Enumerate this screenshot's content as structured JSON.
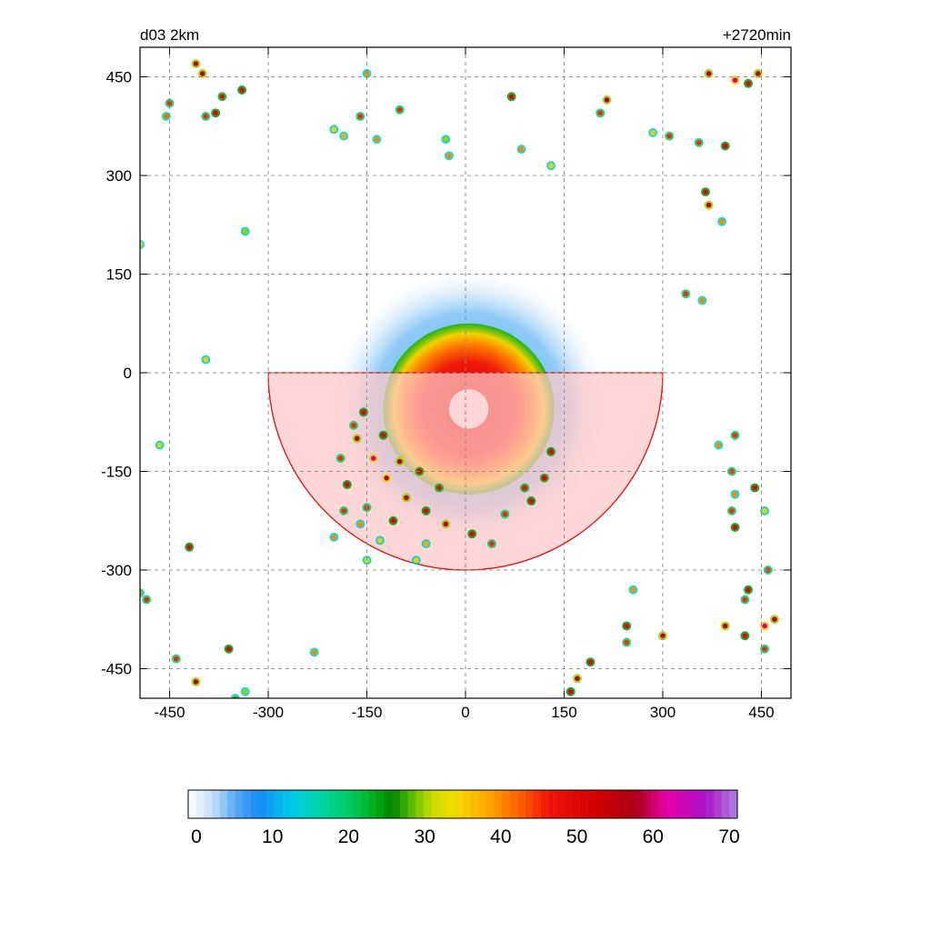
{
  "header": {
    "left_label": "d03 2km",
    "right_label": "+2720min"
  },
  "chart_data": {
    "type": "heatmap",
    "title": "",
    "xlabel": "",
    "ylabel": "",
    "xlim": [
      -495,
      495
    ],
    "ylim": [
      -495,
      495
    ],
    "xticks": [
      -450,
      -300,
      -150,
      0,
      150,
      300,
      450
    ],
    "yticks": [
      450,
      300,
      150,
      0,
      -150,
      -300,
      -450
    ],
    "xtick_labels": [
      "-450",
      "-300",
      "-150",
      "0",
      "150",
      "300",
      "450"
    ],
    "ytick_labels": [
      "450",
      "300",
      "150",
      "0",
      "-150",
      "-300",
      "-450"
    ],
    "grid": true,
    "colorbar": {
      "min": 0,
      "max": 70,
      "ticks": [
        0,
        10,
        20,
        30,
        40,
        50,
        60,
        70
      ],
      "tick_labels": [
        "0",
        "10",
        "20",
        "30",
        "40",
        "50",
        "60",
        "70"
      ]
    },
    "storm": {
      "center": [
        5,
        -55
      ],
      "eye_radius": 30,
      "core_radius": 130,
      "outer_radius": 210
    },
    "sector": {
      "center": [
        0,
        0
      ],
      "inner_radius": 0,
      "outer_radius": 300,
      "start_angle_deg": 180,
      "end_angle_deg": 360,
      "fill_color": "#ffc8c8",
      "stroke_color": "#e01010"
    },
    "cells": [
      [
        -400,
        455,
        55
      ],
      [
        -410,
        470,
        55
      ],
      [
        -340,
        430,
        50
      ],
      [
        -370,
        420,
        48
      ],
      [
        -395,
        390,
        45
      ],
      [
        -380,
        395,
        50
      ],
      [
        -450,
        410,
        45
      ],
      [
        -455,
        390,
        42
      ],
      [
        -150,
        455,
        40
      ],
      [
        -200,
        370,
        35
      ],
      [
        -185,
        360,
        38
      ],
      [
        -160,
        390,
        45
      ],
      [
        -135,
        355,
        40
      ],
      [
        -100,
        400,
        45
      ],
      [
        -30,
        355,
        30
      ],
      [
        -25,
        330,
        40
      ],
      [
        70,
        420,
        50
      ],
      [
        85,
        340,
        40
      ],
      [
        130,
        315,
        35
      ],
      [
        215,
        415,
        55
      ],
      [
        205,
        395,
        45
      ],
      [
        285,
        365,
        35
      ],
      [
        310,
        360,
        45
      ],
      [
        355,
        350,
        45
      ],
      [
        395,
        345,
        50
      ],
      [
        370,
        455,
        55
      ],
      [
        410,
        445,
        60
      ],
      [
        445,
        455,
        55
      ],
      [
        430,
        440,
        50
      ],
      [
        365,
        275,
        50
      ],
      [
        370,
        255,
        55
      ],
      [
        390,
        230,
        40
      ],
      [
        335,
        120,
        45
      ],
      [
        360,
        110,
        40
      ],
      [
        -335,
        215,
        30
      ],
      [
        -495,
        195,
        35
      ],
      [
        -395,
        20,
        35
      ],
      [
        -465,
        -110,
        35
      ],
      [
        -420,
        -265,
        50
      ],
      [
        -495,
        -335,
        40
      ],
      [
        -485,
        -345,
        45
      ],
      [
        -410,
        -470,
        55
      ],
      [
        -440,
        -435,
        45
      ],
      [
        -360,
        -420,
        50
      ],
      [
        -230,
        -425,
        40
      ],
      [
        -335,
        -485,
        30
      ],
      [
        -350,
        -495,
        28
      ],
      [
        410,
        -95,
        45
      ],
      [
        385,
        -110,
        40
      ],
      [
        405,
        -150,
        45
      ],
      [
        410,
        -185,
        40
      ],
      [
        440,
        -175,
        50
      ],
      [
        405,
        -210,
        45
      ],
      [
        410,
        -235,
        50
      ],
      [
        455,
        -210,
        35
      ],
      [
        460,
        -300,
        45
      ],
      [
        430,
        -330,
        50
      ],
      [
        425,
        -345,
        45
      ],
      [
        395,
        -385,
        55
      ],
      [
        425,
        -400,
        50
      ],
      [
        455,
        -385,
        60
      ],
      [
        470,
        -375,
        55
      ],
      [
        455,
        -420,
        45
      ],
      [
        300,
        -400,
        55
      ],
      [
        245,
        -385,
        50
      ],
      [
        245,
        -410,
        45
      ],
      [
        190,
        -440,
        50
      ],
      [
        170,
        -465,
        55
      ],
      [
        160,
        -485,
        50
      ],
      [
        255,
        -330,
        40
      ],
      [
        -155,
        -60,
        50
      ],
      [
        -165,
        -100,
        55
      ],
      [
        -140,
        -130,
        60
      ],
      [
        -120,
        -160,
        58
      ],
      [
        -90,
        -190,
        55
      ],
      [
        -60,
        -210,
        50
      ],
      [
        -30,
        -230,
        55
      ],
      [
        10,
        -245,
        50
      ],
      [
        40,
        -260,
        45
      ],
      [
        -190,
        -130,
        45
      ],
      [
        -180,
        -170,
        50
      ],
      [
        -150,
        -205,
        45
      ],
      [
        -110,
        -225,
        50
      ],
      [
        -160,
        -230,
        40
      ],
      [
        -130,
        -255,
        35
      ],
      [
        -60,
        -260,
        38
      ],
      [
        -170,
        -80,
        45
      ],
      [
        -125,
        -95,
        50
      ],
      [
        -100,
        -135,
        55
      ],
      [
        -70,
        -150,
        52
      ],
      [
        -40,
        -175,
        48
      ],
      [
        60,
        -215,
        45
      ],
      [
        100,
        -195,
        50
      ],
      [
        120,
        -160,
        52
      ],
      [
        130,
        -120,
        50
      ],
      [
        90,
        -175,
        48
      ],
      [
        -200,
        -250,
        40
      ],
      [
        -185,
        -210,
        45
      ],
      [
        -150,
        -285,
        32
      ],
      [
        -75,
        -285,
        35
      ]
    ]
  }
}
